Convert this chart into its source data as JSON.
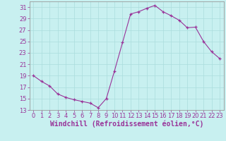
{
  "x": [
    0,
    1,
    2,
    3,
    4,
    5,
    6,
    7,
    8,
    9,
    10,
    11,
    12,
    13,
    14,
    15,
    16,
    17,
    18,
    19,
    20,
    21,
    22,
    23
  ],
  "y": [
    19.0,
    18.0,
    17.2,
    15.8,
    15.2,
    14.8,
    14.5,
    14.2,
    13.4,
    15.0,
    19.8,
    24.8,
    29.8,
    30.2,
    30.8,
    31.3,
    30.2,
    29.5,
    28.7,
    27.4,
    27.5,
    25.0,
    23.2,
    22.0
  ],
  "background_color": "#c8f0f0",
  "line_color": "#993399",
  "marker_color": "#993399",
  "grid_color": "#aadddd",
  "xlabel": "Windchill (Refroidissement éolien,°C)",
  "xlim": [
    -0.5,
    23.5
  ],
  "ylim": [
    13,
    32
  ],
  "yticks": [
    13,
    15,
    17,
    19,
    21,
    23,
    25,
    27,
    29,
    31
  ],
  "xticks": [
    0,
    1,
    2,
    3,
    4,
    5,
    6,
    7,
    8,
    9,
    10,
    11,
    12,
    13,
    14,
    15,
    16,
    17,
    18,
    19,
    20,
    21,
    22,
    23
  ],
  "tick_label_fontsize": 6.0,
  "xlabel_fontsize": 7.0,
  "spine_color": "#999999"
}
